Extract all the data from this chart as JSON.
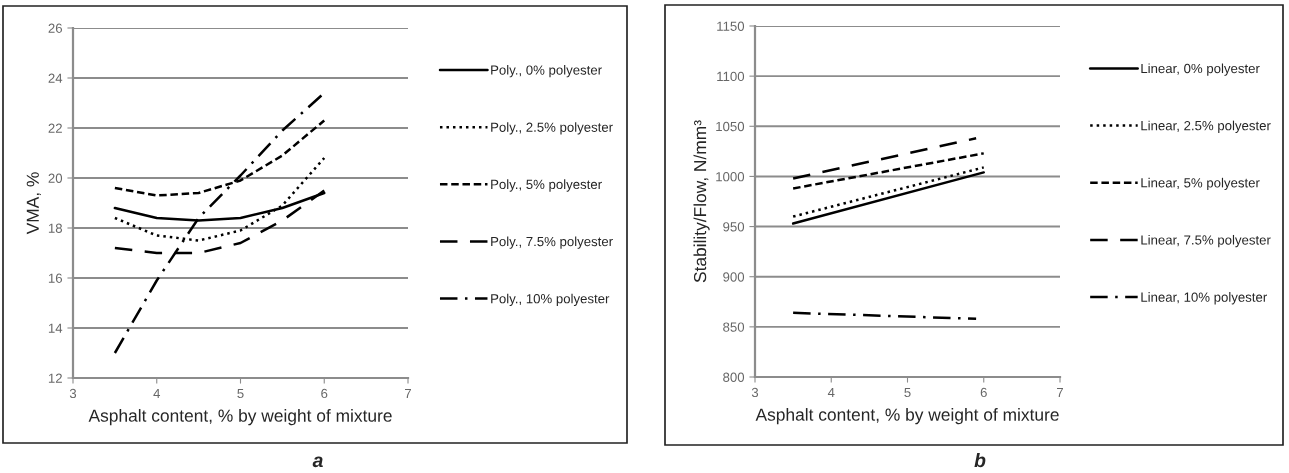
{
  "chart_data": [
    {
      "type": "line",
      "xlabel": "Asphalt content, % by weight of mixture",
      "ylabel": "VMA, %",
      "xlim": [
        3,
        7
      ],
      "xticks": [
        3,
        4,
        5,
        6,
        7
      ],
      "ylim": [
        12,
        26
      ],
      "yticks": [
        12,
        14,
        16,
        18,
        20,
        22,
        24,
        26
      ],
      "grid": "y",
      "legend": "right",
      "annotations": [
        "a"
      ],
      "x": [
        3.5,
        4,
        4.5,
        5,
        5.5,
        6
      ],
      "series": [
        {
          "name": "Poly., 0% polyester",
          "color": "#000000",
          "line_style": "solid",
          "values": [
            18.8,
            18.4,
            18.3,
            18.4,
            18.8,
            19.4
          ]
        },
        {
          "name": "Poly., 2.5% polyester",
          "color": "#000000",
          "line_style": "dotted",
          "values": [
            18.4,
            17.7,
            17.5,
            17.9,
            18.9,
            20.8
          ]
        },
        {
          "name": "Poly., 5% polyester",
          "color": "#000000",
          "line_style": "dashed",
          "values": [
            19.6,
            19.3,
            19.4,
            19.9,
            20.9,
            22.3
          ]
        },
        {
          "name": "Poly., 7.5% polyester",
          "color": "#000000",
          "line_style": "longdash",
          "values": [
            17.2,
            17.0,
            17.0,
            17.4,
            18.3,
            19.5
          ]
        },
        {
          "name": "Poly., 10% polyester",
          "color": "#000000",
          "line_style": "dashdot",
          "values": [
            13.0,
            15.9,
            18.4,
            20.1,
            21.9,
            23.4
          ]
        }
      ]
    },
    {
      "type": "line",
      "xlabel": "Asphalt content, % by weight of mixture",
      "ylabel": "Stability/Flow, N/mm³",
      "xlim": [
        3,
        7
      ],
      "xticks": [
        3,
        4,
        5,
        6,
        7
      ],
      "ylim": [
        800,
        1150
      ],
      "yticks": [
        800,
        850,
        900,
        950,
        1000,
        1050,
        1100,
        1150
      ],
      "grid": "y",
      "legend": "right",
      "annotations": [
        "b"
      ],
      "series": [
        {
          "name": "Linear, 0% polyester",
          "color": "#000000",
          "line_style": "solid",
          "x": [
            3.5,
            6
          ],
          "values": [
            953,
            1004
          ]
        },
        {
          "name": "Linear, 2.5% polyester",
          "color": "#000000",
          "line_style": "dotted",
          "x": [
            3.5,
            6
          ],
          "values": [
            960,
            1009
          ]
        },
        {
          "name": "Linear, 5% polyester",
          "color": "#000000",
          "line_style": "dashed",
          "x": [
            3.5,
            6
          ],
          "values": [
            988,
            1023
          ]
        },
        {
          "name": "Linear, 7.5% polyester",
          "color": "#000000",
          "line_style": "longdash",
          "x": [
            3.5,
            5.9
          ],
          "values": [
            998,
            1038
          ]
        },
        {
          "name": "Linear, 10% polyester",
          "color": "#000000",
          "line_style": "dashdot",
          "x": [
            3.5,
            5.9
          ],
          "values": [
            864,
            858
          ]
        }
      ]
    }
  ]
}
